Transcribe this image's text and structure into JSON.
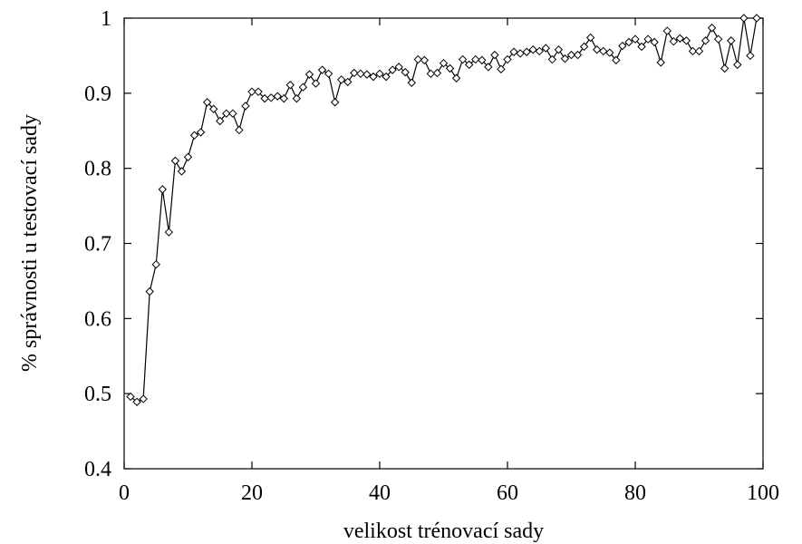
{
  "chart_data": {
    "type": "line",
    "title": "",
    "xlabel": "velikost trénovací sady",
    "ylabel": "% správnosti u testovací sady",
    "xlim": [
      0,
      100
    ],
    "ylim": [
      0.4,
      1.0
    ],
    "xticks": [
      0,
      20,
      40,
      60,
      80,
      100
    ],
    "yticks": [
      0.4,
      0.5,
      0.6,
      0.7,
      0.8,
      0.9,
      1.0
    ],
    "ytick_labels": [
      "0.4",
      "0.5",
      "0.6",
      "0.7",
      "0.8",
      "0.9",
      "1"
    ],
    "grid": false,
    "legend": false,
    "marker": "diamond",
    "line_color": "#000000",
    "series": [
      {
        "x": [
          1,
          2,
          3,
          4,
          5,
          6,
          7,
          8,
          9,
          10,
          11,
          12,
          13,
          14,
          15,
          16,
          17,
          18,
          19,
          20,
          21,
          22,
          23,
          24,
          25,
          26,
          27,
          28,
          29,
          30,
          31,
          32,
          33,
          34,
          35,
          36,
          37,
          38,
          39,
          40,
          41,
          42,
          43,
          44,
          45,
          46,
          47,
          48,
          49,
          50,
          51,
          52,
          53,
          54,
          55,
          56,
          57,
          58,
          59,
          60,
          61,
          62,
          63,
          64,
          65,
          66,
          67,
          68,
          69,
          70,
          71,
          72,
          73,
          74,
          75,
          76,
          77,
          78,
          79,
          80,
          81,
          82,
          83,
          84,
          85,
          86,
          87,
          88,
          89,
          90,
          91,
          92,
          93,
          94,
          95,
          96,
          97,
          98,
          99
        ],
        "y": [
          0.496,
          0.489,
          0.493,
          0.636,
          0.672,
          0.772,
          0.715,
          0.81,
          0.796,
          0.815,
          0.844,
          0.848,
          0.888,
          0.879,
          0.863,
          0.873,
          0.873,
          0.851,
          0.883,
          0.902,
          0.902,
          0.893,
          0.894,
          0.896,
          0.893,
          0.911,
          0.893,
          0.908,
          0.925,
          0.913,
          0.931,
          0.926,
          0.888,
          0.918,
          0.915,
          0.927,
          0.926,
          0.925,
          0.922,
          0.926,
          0.922,
          0.931,
          0.935,
          0.928,
          0.914,
          0.945,
          0.944,
          0.926,
          0.927,
          0.94,
          0.933,
          0.92,
          0.945,
          0.938,
          0.945,
          0.944,
          0.935,
          0.951,
          0.932,
          0.945,
          0.955,
          0.953,
          0.955,
          0.958,
          0.956,
          0.96,
          0.945,
          0.958,
          0.946,
          0.951,
          0.951,
          0.962,
          0.974,
          0.958,
          0.956,
          0.954,
          0.944,
          0.963,
          0.968,
          0.972,
          0.962,
          0.972,
          0.968,
          0.941,
          0.983,
          0.969,
          0.973,
          0.97,
          0.956,
          0.956,
          0.97,
          0.987,
          0.972,
          0.933,
          0.97,
          0.938,
          1.0,
          0.95,
          1.0
        ]
      }
    ]
  }
}
